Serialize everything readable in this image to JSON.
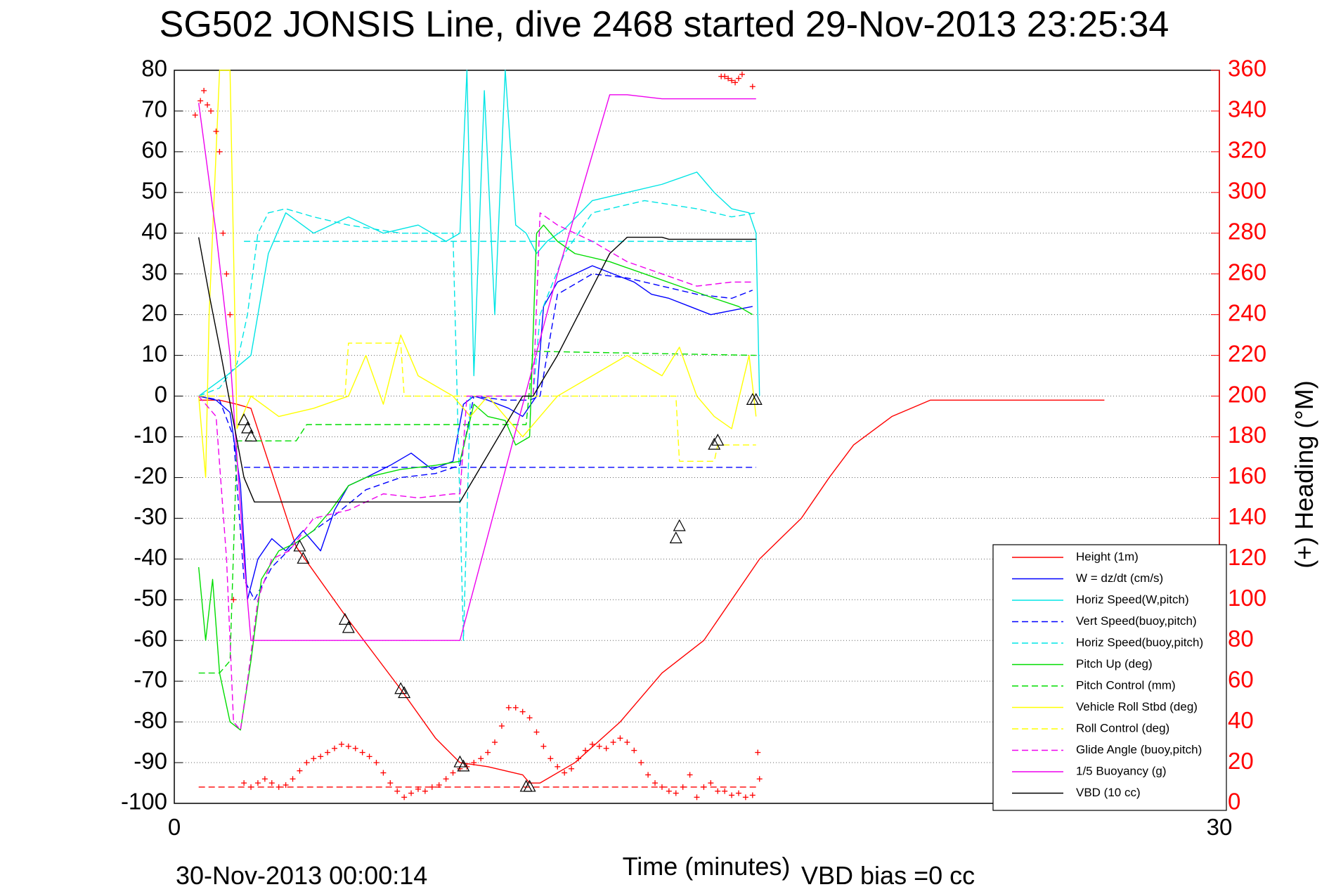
{
  "chart_data": {
    "type": "line",
    "title": "SG502 JONSIS Line, dive 2468 started 29-Nov-2013 23:25:34",
    "xlabel": "Time (minutes)",
    "ylabel_right": "(+) Heading (°M)",
    "footer_left": "30-Nov-2013 00:00:14",
    "footer_right": "VBD bias =0 cc",
    "xlim": [
      0,
      30
    ],
    "ylim_left": [
      -100,
      80
    ],
    "ylim_right": [
      0,
      360
    ],
    "x_ticks": [
      "0",
      "30"
    ],
    "y_ticks_left": [
      "80",
      "70",
      "60",
      "50",
      "40",
      "30",
      "20",
      "10",
      "0",
      "-10",
      "-20",
      "-30",
      "-40",
      "-50",
      "-60",
      "-70",
      "-80",
      "-90",
      "-100"
    ],
    "y_ticks_right": [
      "360",
      "340",
      "320",
      "300",
      "280",
      "260",
      "240",
      "220",
      "200",
      "180",
      "160",
      "140",
      "120",
      "100",
      "80",
      "60",
      "40",
      "20",
      "0"
    ],
    "grid": "horizontal dotted",
    "legend_position": "bottom-right",
    "colors": {
      "height": "#ff0000",
      "w": "#0000ff",
      "horiz_w": "#00e5e5",
      "pitch": "#00dd00",
      "roll": "#ffff00",
      "glide": "#ee00ee",
      "buoy": "#ee00ee",
      "vbd": "#000000",
      "heading": "#ff0000"
    },
    "series": [
      {
        "name": "Height (1m)",
        "key": "height",
        "style": "solid",
        "x": [
          0.7,
          1.3,
          1.8,
          2.2,
          3.5,
          5.0,
          6.5,
          7.5,
          8.2,
          9.0,
          10.0,
          10.2,
          10.5,
          11.5,
          12.8,
          14.0,
          15.2,
          16.8,
          18.0,
          18.8,
          19.5,
          20.6,
          21.7,
          22.2,
          23.4,
          24.5,
          25.5,
          26.0,
          26.7
        ],
        "y": [
          -1,
          -1,
          -2,
          -3,
          -37,
          -55,
          -72,
          -84,
          -90,
          -91,
          -93,
          -95,
          -95,
          -90,
          -80,
          -68,
          -60,
          -40,
          -30,
          -20,
          -12,
          -5,
          -1,
          -1,
          -1,
          -1,
          -1,
          -1,
          -1
        ]
      },
      {
        "name": "W = dz/dt (cm/s)",
        "key": "w",
        "style": "solid",
        "x": [
          0.7,
          1.2,
          1.6,
          1.9,
          2.1,
          2.4,
          2.8,
          3.2,
          3.7,
          4.2,
          4.6,
          5.0,
          5.5,
          6.2,
          6.8,
          7.4,
          8.0,
          8.3,
          8.6,
          9.0,
          9.6,
          10.0,
          10.4,
          10.6,
          11.0,
          11.5,
          12.0,
          12.6,
          13.2,
          13.7,
          14.2,
          14.8,
          15.4,
          16.0,
          16.6
        ],
        "y": [
          0,
          -1,
          -4,
          -22,
          -50,
          -40,
          -35,
          -38,
          -33,
          -38,
          -28,
          -22,
          -20,
          -17,
          -14,
          -18,
          -16,
          -2,
          0,
          -1,
          -3,
          -5,
          0,
          22,
          28,
          30,
          32,
          30,
          28,
          25,
          24,
          22,
          20,
          21,
          22
        ]
      },
      {
        "name": "Horiz Speed(W,pitch)",
        "key": "horiz_w",
        "style": "solid",
        "x": [
          0.7,
          1.5,
          2.2,
          2.7,
          3.2,
          4.0,
          5.0,
          6.0,
          7.0,
          7.8,
          8.2,
          8.4,
          8.6,
          8.9,
          9.2,
          9.5,
          9.8,
          10.1,
          10.4,
          10.7,
          11.2,
          12.0,
          13.0,
          14.0,
          15.0,
          15.5,
          16.0,
          16.5,
          16.7,
          16.8
        ],
        "y": [
          0,
          5,
          10,
          35,
          45,
          40,
          44,
          40,
          42,
          38,
          40,
          80,
          5,
          75,
          20,
          80,
          42,
          40,
          35,
          38,
          41,
          48,
          50,
          52,
          55,
          50,
          46,
          45,
          40,
          0
        ]
      },
      {
        "name": "Vert Speed(buoy,pitch)",
        "key": "w",
        "style": "dashed",
        "x": [
          0.7,
          1.3,
          1.7,
          2.0,
          2.3,
          2.8,
          3.5,
          4.5,
          5.5,
          6.5,
          7.5,
          8.2,
          8.6,
          9.5,
          10.2,
          10.5,
          11.0,
          12.0,
          13.0,
          14.0,
          15.0,
          16.0,
          16.6
        ],
        "y": [
          0,
          -1,
          -10,
          -45,
          -50,
          -42,
          -36,
          -30,
          -23,
          -20,
          -19,
          -17,
          0,
          -1,
          -1,
          0,
          25,
          30,
          29,
          27,
          25,
          24,
          26
        ]
      },
      {
        "name": "Horiz Speed(buoy,pitch)",
        "key": "horiz_w",
        "style": "dashed",
        "x": [
          0.7,
          1.3,
          1.8,
          2.1,
          2.4,
          2.7,
          3.2,
          4.0,
          5.0,
          6.5,
          8.0,
          8.3,
          8.5,
          9.0,
          10.0,
          10.3,
          10.5,
          11.2,
          12.0,
          13.5,
          15.0,
          16.0,
          16.7
        ],
        "y": [
          0,
          2,
          8,
          20,
          40,
          45,
          46,
          44,
          42,
          40,
          40,
          -60,
          0,
          0,
          0,
          0,
          20,
          35,
          45,
          48,
          46,
          44,
          45
        ]
      },
      {
        "name": "Pitch Up (deg)",
        "key": "pitch",
        "style": "solid",
        "x": [
          0.7,
          0.9,
          1.1,
          1.3,
          1.6,
          1.9,
          2.2,
          2.5,
          3.0,
          3.5,
          4.0,
          4.5,
          5.0,
          5.5,
          6.5,
          7.5,
          8.2,
          8.6,
          9.0,
          9.5,
          9.8,
          10.2,
          10.4,
          10.6,
          11.0,
          11.5,
          12.5,
          13.5,
          14.5,
          15.5,
          16.2,
          16.6
        ],
        "y": [
          -42,
          -60,
          -45,
          -68,
          -80,
          -82,
          -65,
          -45,
          -38,
          -36,
          -33,
          -28,
          -22,
          -20,
          -18,
          -17,
          -16,
          -2,
          -5,
          -6,
          -12,
          -10,
          40,
          42,
          38,
          35,
          33,
          30,
          27,
          24,
          22,
          20
        ]
      },
      {
        "name": "Pitch Control (mm)",
        "key": "pitch",
        "style": "dashed",
        "x": [
          0.7,
          1.3,
          1.6,
          1.8,
          2.0,
          2.4,
          3.5,
          3.8,
          8.1,
          8.2,
          10.1,
          10.3,
          16.7
        ],
        "y": [
          -68,
          -68,
          -65,
          -11,
          -11,
          -11,
          -11,
          -7,
          -7,
          -7,
          -7,
          11,
          10
        ]
      },
      {
        "name": "Vehicle Roll Stbd (deg)",
        "key": "roll",
        "style": "solid",
        "x": [
          0.7,
          0.9,
          1.0,
          1.3,
          1.6,
          1.8,
          2.2,
          3.0,
          4.0,
          5.0,
          5.5,
          6.0,
          6.5,
          7.0,
          8.0,
          8.5,
          9.0,
          10.0,
          11.0,
          12.0,
          13.0,
          14.0,
          14.5,
          15.0,
          15.5,
          16.0,
          16.5,
          16.7
        ],
        "y": [
          0,
          -20,
          20,
          80,
          80,
          -8,
          0,
          -5,
          -3,
          0,
          10,
          -2,
          15,
          5,
          0,
          -5,
          0,
          -10,
          0,
          5,
          10,
          5,
          12,
          0,
          -5,
          -8,
          10,
          -5
        ]
      },
      {
        "name": "Roll Control (deg)",
        "key": "roll",
        "style": "dashed",
        "x": [
          0.7,
          4.9,
          5.0,
          6.5,
          6.6,
          14.4,
          14.5,
          15.5,
          15.6,
          16.7
        ],
        "y": [
          0,
          0,
          13,
          13,
          0,
          0,
          -16,
          -16,
          -12,
          -12
        ]
      },
      {
        "name": "Glide Angle (buoy,pitch)",
        "key": "glide",
        "style": "dashed",
        "x": [
          0.7,
          1.2,
          1.5,
          1.7,
          1.9,
          2.1,
          2.4,
          2.8,
          3.3,
          4.0,
          5.0,
          6.0,
          7.0,
          8.0,
          8.2,
          8.4,
          10.0,
          10.3,
          10.5,
          11.0,
          12.0,
          13.0,
          14.0,
          15.0,
          16.0,
          16.6
        ],
        "y": [
          0,
          -5,
          -40,
          -80,
          -82,
          -70,
          -50,
          -40,
          -38,
          -30,
          -28,
          -24,
          -25,
          -24,
          -24,
          0,
          0,
          0,
          45,
          42,
          38,
          33,
          30,
          27,
          28,
          28
        ]
      },
      {
        "name": "1/5 Buoyancy (g)",
        "key": "buoy",
        "style": "solid",
        "x": [
          0.7,
          1.2,
          1.6,
          2.0,
          2.2,
          8.2,
          11.0,
          12.5,
          13.0,
          14.0,
          15.5,
          16.7
        ],
        "y": [
          72,
          40,
          10,
          -40,
          -60,
          -60,
          30,
          74,
          74,
          73,
          73,
          73
        ]
      },
      {
        "name": "VBD (10 cc)",
        "key": "vbd",
        "style": "solid",
        "x": [
          0.7,
          1.0,
          1.3,
          2.0,
          2.3,
          8.2,
          10.0,
          10.3,
          11.0,
          12.5,
          13.0,
          14.0,
          14.2,
          16.7
        ],
        "y": [
          39,
          25,
          12,
          -20,
          -26,
          -26,
          0,
          0,
          10,
          35,
          39,
          39,
          38.5,
          38.5
        ]
      }
    ],
    "extra_lines": [
      {
        "key": "height",
        "style": "dashed",
        "x": [
          0.7,
          16.7
        ],
        "y": [
          -96,
          -96
        ]
      },
      {
        "key": "w",
        "style": "dashed",
        "x": [
          2.0,
          16.7
        ],
        "y": [
          -17.5,
          -17.5
        ]
      },
      {
        "key": "horiz_w",
        "style": "dashed",
        "x": [
          2.0,
          16.7
        ],
        "y": [
          38,
          38
        ]
      }
    ],
    "vertices": [
      {
        "x": 2.0,
        "y": -6
      },
      {
        "x": 2.1,
        "y": -8
      },
      {
        "x": 2.2,
        "y": -10
      },
      {
        "x": 3.6,
        "y": -37
      },
      {
        "x": 3.7,
        "y": -40
      },
      {
        "x": 4.9,
        "y": -55
      },
      {
        "x": 5.0,
        "y": -57
      },
      {
        "x": 6.5,
        "y": -72
      },
      {
        "x": 6.6,
        "y": -73
      },
      {
        "x": 8.2,
        "y": -90
      },
      {
        "x": 8.3,
        "y": -91
      },
      {
        "x": 10.1,
        "y": -96
      },
      {
        "x": 10.2,
        "y": -96
      },
      {
        "x": 14.4,
        "y": -35
      },
      {
        "x": 14.5,
        "y": -32
      },
      {
        "x": 15.5,
        "y": -12
      },
      {
        "x": 15.6,
        "y": -11
      },
      {
        "x": 16.6,
        "y": -1
      },
      {
        "x": 16.7,
        "y": -1
      }
    ],
    "heading": {
      "x": [
        0.6,
        0.75,
        0.85,
        0.95,
        1.05,
        1.2,
        1.3,
        1.4,
        1.5,
        1.6,
        1.7,
        2.0,
        2.2,
        2.4,
        2.6,
        2.8,
        3.0,
        3.2,
        3.4,
        3.6,
        3.8,
        4.0,
        4.2,
        4.4,
        4.6,
        4.8,
        5.0,
        5.2,
        5.4,
        5.6,
        5.8,
        6.0,
        6.2,
        6.4,
        6.6,
        6.8,
        7.0,
        7.2,
        7.4,
        7.6,
        7.8,
        8.0,
        8.2,
        8.4,
        8.6,
        8.8,
        9.0,
        9.2,
        9.4,
        9.6,
        9.8,
        10.0,
        10.2,
        10.4,
        10.6,
        10.8,
        11.0,
        11.2,
        11.4,
        11.6,
        11.8,
        12.0,
        12.2,
        12.4,
        12.6,
        12.8,
        13.0,
        13.2,
        13.4,
        13.6,
        13.8,
        14.0,
        14.2,
        14.4,
        14.6,
        14.8,
        15.0,
        15.2,
        15.4,
        15.6,
        15.8,
        16.0,
        16.2,
        16.4,
        16.6,
        16.75,
        16.8
      ],
      "y": [
        338,
        345,
        350,
        343,
        340,
        330,
        320,
        280,
        260,
        240,
        100,
        10,
        8,
        10,
        12,
        10,
        8,
        9,
        12,
        16,
        20,
        22,
        23,
        25,
        27,
        29,
        28,
        27,
        25,
        23,
        20,
        15,
        10,
        6,
        3,
        5,
        7,
        6,
        8,
        9,
        12,
        15,
        17,
        18,
        20,
        22,
        25,
        30,
        38,
        47,
        47,
        45,
        42,
        35,
        28,
        22,
        18,
        15,
        17,
        22,
        26,
        29,
        28,
        27,
        30,
        32,
        30,
        26,
        20,
        14,
        10,
        8,
        6,
        5,
        8,
        14,
        3,
        8,
        10,
        6,
        6,
        4,
        5,
        3,
        4,
        25,
        12
      ]
    },
    "heading_top": {
      "x": [
        15.7,
        15.8,
        15.9,
        16.0,
        16.1,
        16.2,
        16.3,
        16.6
      ],
      "y": [
        357,
        357,
        356,
        355,
        354,
        356,
        358,
        352
      ]
    }
  }
}
